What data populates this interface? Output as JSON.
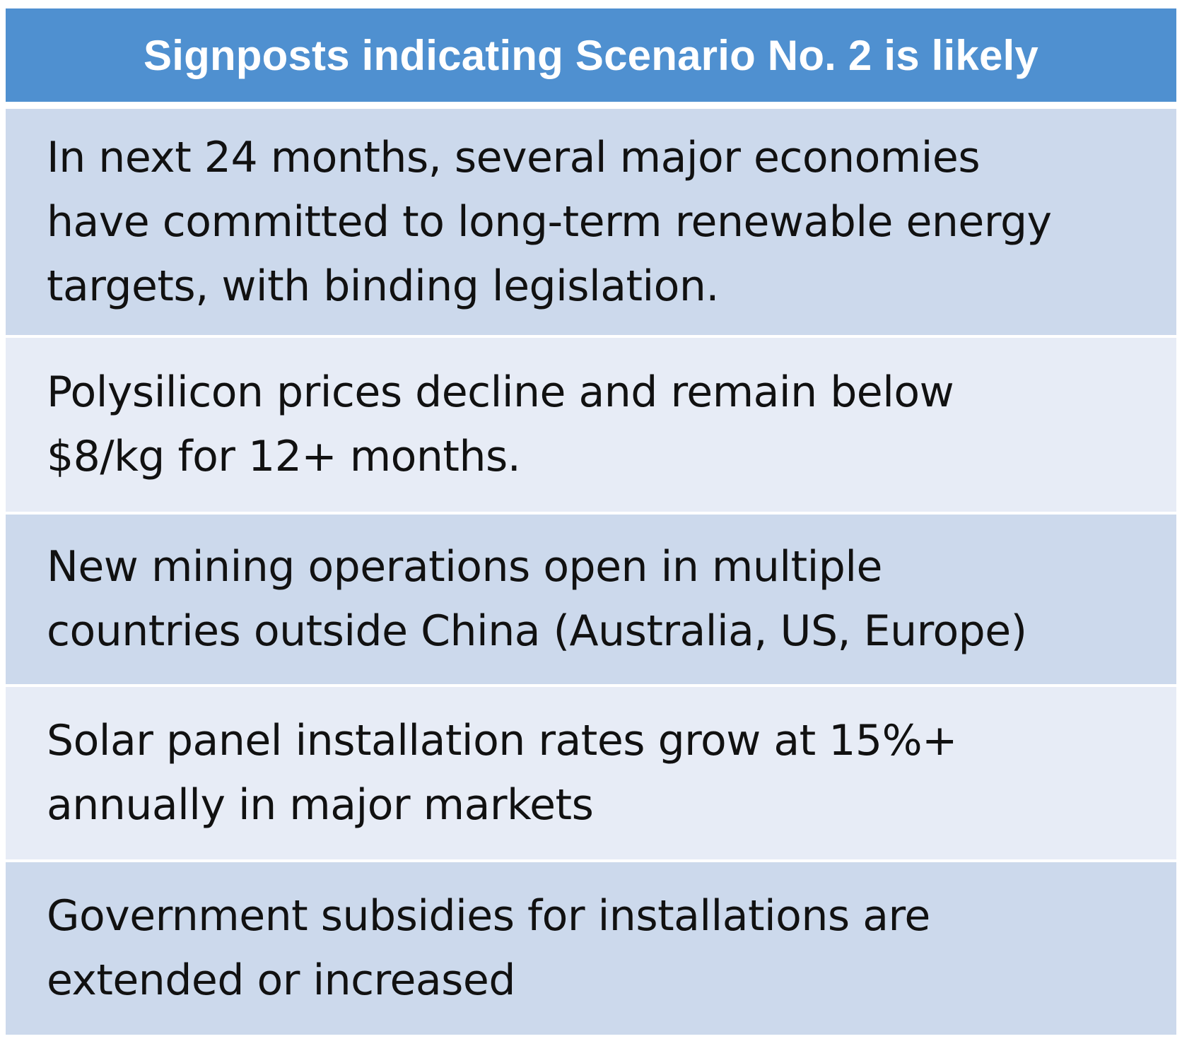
{
  "table": {
    "header": "Signposts indicating Scenario No. 2 is likely",
    "rows": [
      {
        "lines": [
          "In next 24 months, several major economies",
          "have committed to long-term renewable energy",
          "targets, with binding legislation."
        ]
      },
      {
        "lines": [
          "Polysilicon prices decline and remain below",
          "$8/kg for 12+ months."
        ]
      },
      {
        "lines": [
          "New mining operations open in multiple",
          "countries outside China (Australia, US, Europe)"
        ]
      },
      {
        "lines": [
          "Solar panel installation rates grow at 15%+",
          "annually in major markets"
        ]
      },
      {
        "lines": [
          "Government subsidies for installations are",
          "extended or increased"
        ]
      }
    ],
    "colors": {
      "header_bg": "#4f90d0",
      "header_text": "#ffffff",
      "row_dark": "#ccd9ec",
      "row_light": "#e7ecf6"
    }
  }
}
